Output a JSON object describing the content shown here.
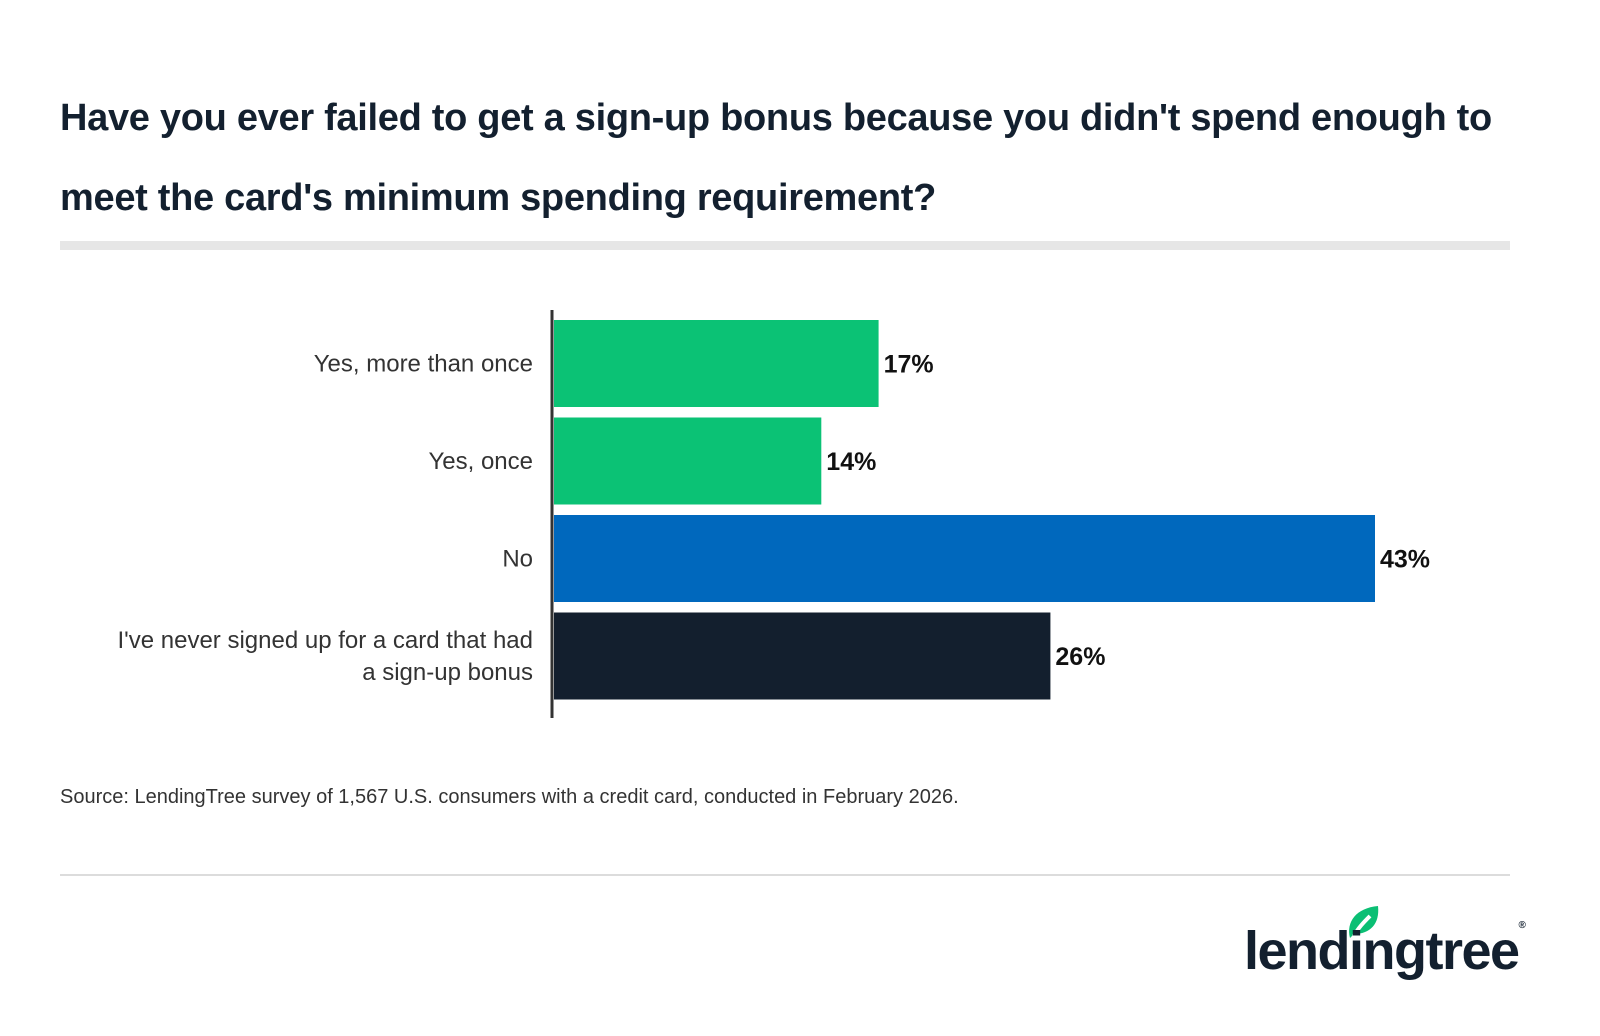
{
  "title": "Have you ever failed to get a sign-up bonus because you didn't spend enough to meet the card's minimum spending requirement?",
  "source": "Source: LendingTree survey of 1,567 U.S. consumers with a credit card, conducted in February 2026.",
  "logo": {
    "text": "lendingtree",
    "icon": "leaf-icon",
    "color": "#0bbf74"
  },
  "chart_data": {
    "type": "bar",
    "orientation": "horizontal",
    "categories": [
      "Yes, more than once",
      "Yes, once",
      "No",
      "I've never signed up for a card that had a sign-up bonus"
    ],
    "category_lines": [
      [
        "Yes, more than once"
      ],
      [
        "Yes, once"
      ],
      [
        "No"
      ],
      [
        "I've never signed up for a card that had",
        "a sign-up bonus"
      ]
    ],
    "values": [
      17,
      14,
      43,
      26
    ],
    "data_labels": [
      "17%",
      "14%",
      "43%",
      "26%"
    ],
    "colors": [
      "#0bc275",
      "#0bc275",
      "#0068bd",
      "#131f2e"
    ],
    "xlim": [
      0,
      43
    ],
    "grid": false,
    "legend": "none"
  }
}
